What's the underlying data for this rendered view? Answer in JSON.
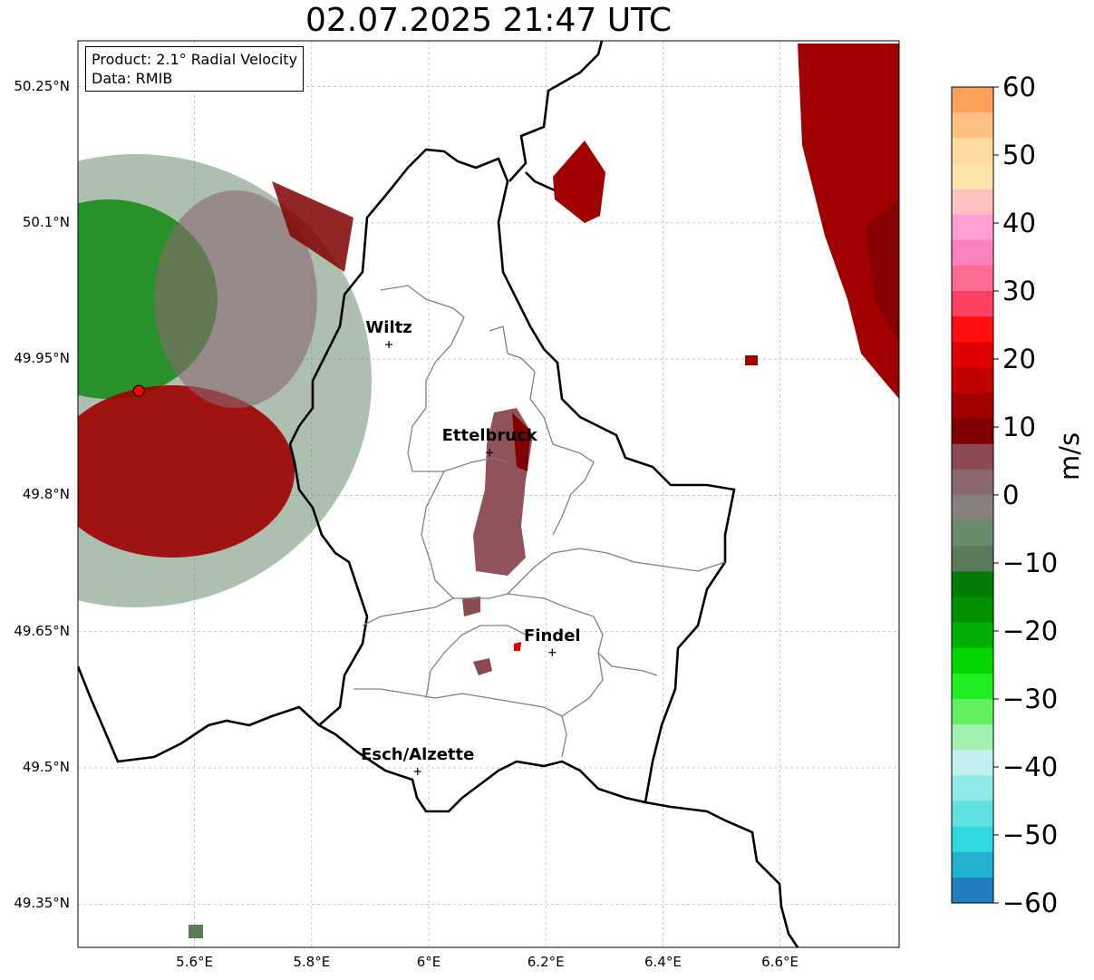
{
  "title": "02.07.2025 21:47 UTC",
  "info": {
    "product": "Product: 2.1° Radial Velocity",
    "data_source": "Data: RMIB"
  },
  "axes": {
    "lat_ticks": [
      "50.25°N",
      "50.1°N",
      "49.95°N",
      "49.8°N",
      "49.65°N",
      "49.5°N",
      "49.35°N"
    ],
    "lon_ticks": [
      "5.6°E",
      "5.8°E",
      "6°E",
      "6.2°E",
      "6.4°E",
      "6.6°E"
    ]
  },
  "cities": [
    {
      "name": "Wiltz",
      "lat": 49.966,
      "lon": 5.932
    },
    {
      "name": "Ettelbruck",
      "lat": 49.847,
      "lon": 6.104
    },
    {
      "name": "Findel",
      "lat": 49.627,
      "lon": 6.211
    },
    {
      "name": "Esch/Alzette",
      "lat": 49.496,
      "lon": 5.981
    }
  ],
  "radar_site": {
    "lat": 49.915,
    "lon": 5.505
  },
  "colorbar": {
    "ticks": [
      "60",
      "50",
      "40",
      "30",
      "20",
      "10",
      "0",
      "−10",
      "−20",
      "−30",
      "−40",
      "−50",
      "−60"
    ],
    "unit": "m/s",
    "min": -60,
    "max": 60,
    "colors": [
      "#ff9f5a",
      "#ffc080",
      "#ffd9a0",
      "#ffe3a8",
      "#ffc0c0",
      "#ff9ed0",
      "#ff80c0",
      "#ff6a90",
      "#ff4060",
      "#ff1010",
      "#e00000",
      "#c00000",
      "#a00000",
      "#800000",
      "#8a4a50",
      "#8a6870",
      "#86807e",
      "#6a8a6c",
      "#5a7a5a",
      "#007a00",
      "#009000",
      "#00b000",
      "#00d800",
      "#20f020",
      "#60f060",
      "#a0f0b0",
      "#c0f0f0",
      "#90e8e8",
      "#60e0e0",
      "#30d8e0",
      "#20b0d0",
      "#2080c0"
    ]
  },
  "colors": {
    "inbound_green": "#007a00",
    "outbound_red": "#a00000",
    "near_zero": "#86707a"
  }
}
